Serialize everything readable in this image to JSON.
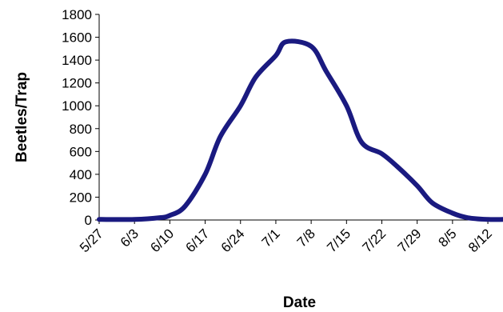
{
  "chart_data": {
    "type": "line",
    "title": "",
    "xlabel": "Date",
    "ylabel": "Beetles/Trap",
    "x_tick_labels": [
      "5/27",
      "6/3",
      "6/10",
      "6/17",
      "6/24",
      "7/1",
      "7/8",
      "7/15",
      "7/22",
      "7/29",
      "8/5",
      "8/12"
    ],
    "y_tick_labels": [
      "0",
      "200",
      "400",
      "600",
      "800",
      "1000",
      "1200",
      "1400",
      "1600",
      "1800"
    ],
    "ylim": [
      0,
      1800
    ],
    "xlim": [
      "5/27",
      "8/15"
    ],
    "grid": false,
    "legend": "none",
    "series": [
      {
        "color": "#1a1a80",
        "x": [
          "5/27",
          "6/3",
          "6/8",
          "6/10",
          "6/13",
          "6/17",
          "6/20",
          "6/24",
          "6/27",
          "7/1",
          "7/3",
          "7/8",
          "7/11",
          "7/15",
          "7/18",
          "7/22",
          "7/25",
          "7/29",
          "8/1",
          "8/5",
          "8/8",
          "8/12",
          "8/15"
        ],
        "y": [
          5,
          5,
          20,
          40,
          120,
          400,
          730,
          1000,
          1250,
          1440,
          1560,
          1520,
          1300,
          1000,
          680,
          580,
          470,
          300,
          150,
          60,
          20,
          5,
          5
        ]
      }
    ]
  }
}
